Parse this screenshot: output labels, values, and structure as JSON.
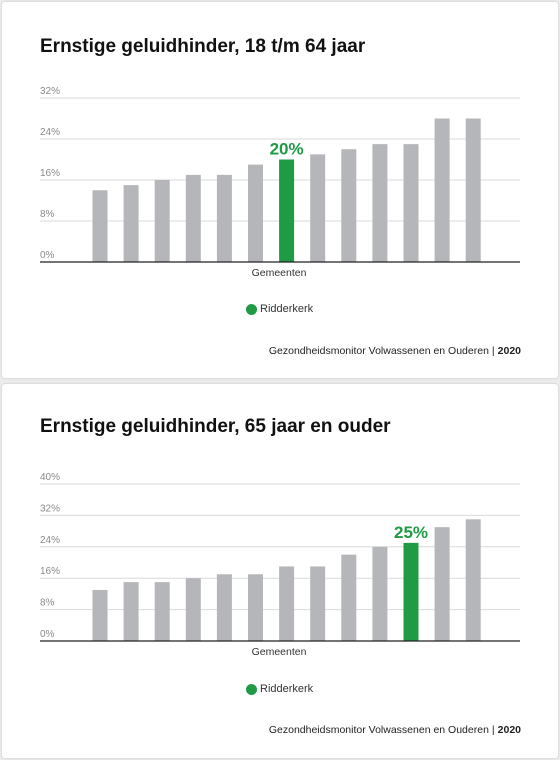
{
  "colors": {
    "bar": "#b5b6b9",
    "highlight": "#1f9a45",
    "grid": "#d9d9d9",
    "axis": "#222222"
  },
  "chart_data": [
    {
      "type": "bar",
      "title": "Ernstige geluidhinder, 18 t/m 64 jaar",
      "xlabel": "Gemeenten",
      "ylabel": "",
      "ylim": [
        0,
        32
      ],
      "yticks": [
        "0%",
        "8%",
        "16%",
        "24%",
        "32%"
      ],
      "ytick_values": [
        0,
        8,
        16,
        24,
        32
      ],
      "values": [
        14,
        15,
        16,
        17,
        17,
        19,
        20,
        21,
        22,
        23,
        23,
        28,
        28
      ],
      "highlight_index": 6,
      "highlight_label": "20%",
      "legend": "Ridderkerk",
      "legend_position": "bottom",
      "grid": true,
      "source": "Gezondheidsmonitor Volwassenen en Ouderen",
      "source_separator": "|",
      "year": "2020"
    },
    {
      "type": "bar",
      "title": "Ernstige geluidhinder, 65 jaar en ouder",
      "xlabel": "Gemeenten",
      "ylabel": "",
      "ylim": [
        0,
        40
      ],
      "yticks": [
        "0%",
        "8%",
        "16%",
        "24%",
        "32%",
        "40%"
      ],
      "ytick_values": [
        0,
        8,
        16,
        24,
        32,
        40
      ],
      "values": [
        13,
        15,
        15,
        16,
        17,
        17,
        19,
        19,
        22,
        24,
        25,
        29,
        31
      ],
      "highlight_index": 10,
      "highlight_label": "25%",
      "legend": "Ridderkerk",
      "legend_position": "bottom",
      "grid": true,
      "source": "Gezondheidsmonitor Volwassenen en Ouderen",
      "source_separator": "|",
      "year": "2020"
    }
  ]
}
